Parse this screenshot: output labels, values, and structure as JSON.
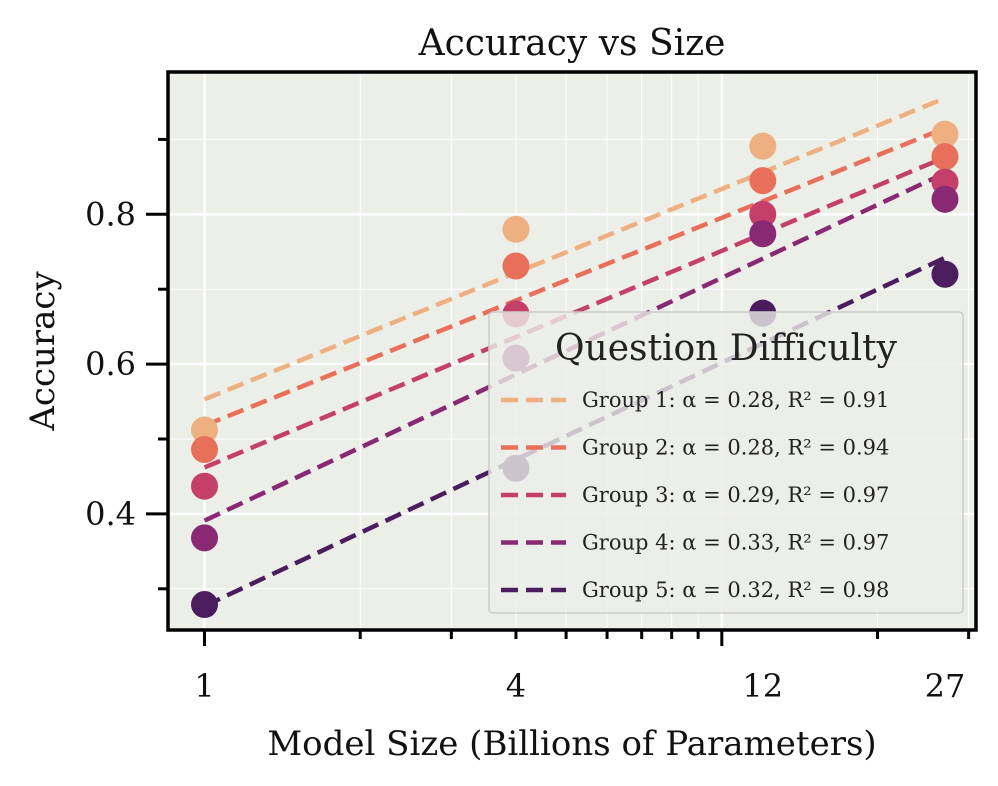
{
  "chart_data": {
    "type": "scatter",
    "title": "Accuracy vs Size",
    "xlabel": "Model Size (Billions of Parameters)",
    "ylabel": "Accuracy",
    "x_scale": "log",
    "xlim": [
      0.85,
      31
    ],
    "ylim": [
      0.245,
      0.99
    ],
    "x_ticks": [
      1,
      4,
      12,
      27
    ],
    "x_tick_labels": [
      "1",
      "4",
      "12",
      "27"
    ],
    "y_ticks": [
      0.4,
      0.6,
      0.8
    ],
    "y_tick_labels": [
      "0.4",
      "0.6",
      "0.8"
    ],
    "grid": true,
    "legend": {
      "title": "Question Difficulty",
      "placement": "lower-right"
    },
    "x": [
      1,
      4,
      12,
      27
    ],
    "series": [
      {
        "label": "Group 1: α = 0.28, R² = 0.91",
        "alpha": "0.28",
        "r2": "0.91",
        "color": "#efb081",
        "points": [
          0.512,
          0.78,
          0.891,
          0.907
        ],
        "fit": [
          0.553,
          0.955
        ]
      },
      {
        "label": "Group 2: α = 0.28, R² = 0.94",
        "alpha": "0.28",
        "r2": "0.94",
        "color": "#e8705a",
        "points": [
          0.486,
          0.731,
          0.845,
          0.877
        ],
        "fit": [
          0.518,
          0.915
        ]
      },
      {
        "label": "Group 3: α = 0.29, R² = 0.97",
        "alpha": "0.29",
        "r2": "0.97",
        "color": "#c4406a",
        "points": [
          0.437,
          0.667,
          0.8,
          0.843
        ],
        "fit": [
          0.462,
          0.876
        ]
      },
      {
        "label": "Group 4: α = 0.33, R² = 0.97",
        "alpha": "0.33",
        "r2": "0.97",
        "color": "#892873",
        "points": [
          0.368,
          0.608,
          0.774,
          0.82
        ],
        "fit": [
          0.391,
          0.855
        ]
      },
      {
        "label": "Group 5: α = 0.32, R² = 0.98",
        "alpha": "0.32",
        "r2": "0.98",
        "color": "#4b1d5e",
        "points": [
          0.279,
          0.461,
          0.668,
          0.72
        ],
        "fit": [
          0.277,
          0.742
        ]
      }
    ]
  }
}
